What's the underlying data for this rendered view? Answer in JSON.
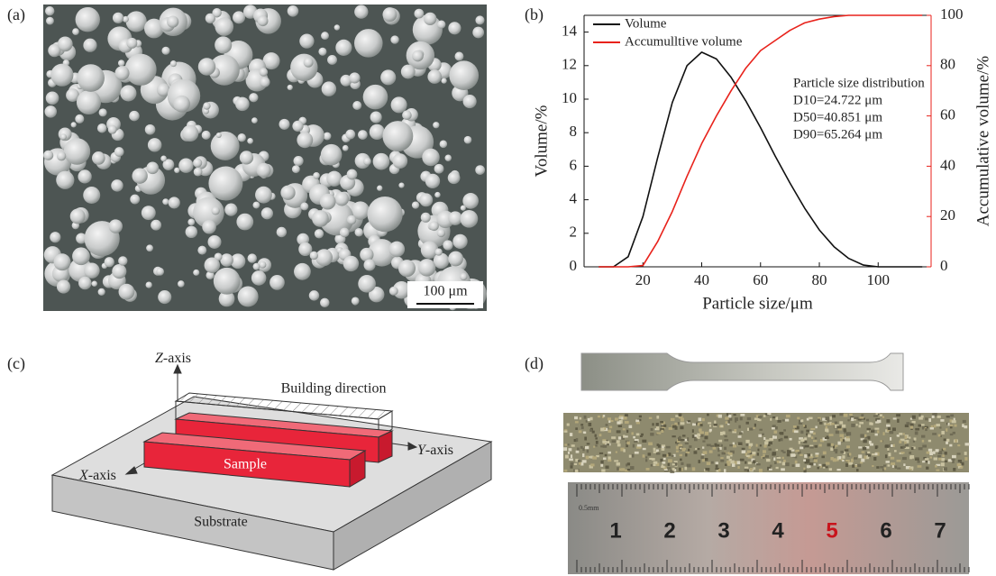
{
  "panels": {
    "a": {
      "label": "(a)",
      "scale_bar": "100 μm"
    },
    "c": {
      "label": "(c)",
      "z_axis": [
        "Z",
        "-axis"
      ],
      "y_axis": [
        "Y",
        "-axis"
      ],
      "x_axis": [
        "X",
        "-axis"
      ],
      "building_direction": "Building direction",
      "sample": "Sample",
      "substrate": "Substrate"
    },
    "d": {
      "label": "(d)",
      "ruler_unit": "0.5mm",
      "ruler_marks": [
        "1",
        "2",
        "3",
        "4",
        "5",
        "6",
        "7"
      ]
    }
  },
  "chart_data": {
    "type": "line",
    "label": "(b)",
    "x_label": "Particle size/μm",
    "y_label": "Volume/%",
    "y2_label": "Accumulative volume/%",
    "x": [
      5,
      10,
      15,
      20,
      25,
      30,
      35,
      40,
      45,
      50,
      55,
      60,
      65,
      70,
      75,
      80,
      85,
      90,
      95,
      100,
      105,
      110,
      115
    ],
    "series": [
      {
        "name": "Volume",
        "color": "#111111",
        "values": [
          0,
          0,
          0.6,
          3,
          6.5,
          9.8,
          12,
          12.8,
          12.4,
          11.3,
          9.9,
          8.3,
          6.6,
          5,
          3.5,
          2.2,
          1.2,
          0.5,
          0.1,
          0,
          0,
          0,
          0
        ]
      },
      {
        "name": "Accumulltive volume",
        "color": "#e8221b",
        "axis": "y2",
        "values": [
          0,
          0,
          0,
          0.5,
          10,
          22,
          36,
          49,
          60,
          70,
          79,
          86,
          90,
          94,
          97,
          98.5,
          99.5,
          100,
          100,
          100,
          100,
          100,
          100
        ]
      }
    ],
    "xlim": [
      0,
      118
    ],
    "xticks": [
      20,
      40,
      60,
      80,
      100
    ],
    "ylim": [
      0,
      15
    ],
    "yticks": [
      0,
      2,
      4,
      6,
      8,
      10,
      12,
      14
    ],
    "y2lim": [
      0,
      100
    ],
    "y2ticks": [
      0,
      20,
      40,
      60,
      80,
      100
    ],
    "legend": "upper left",
    "annotations": [
      "Particle size distribution",
      "D10=24.722 μm",
      "D50=40.851 μm",
      "D90=65.264 μm"
    ]
  }
}
